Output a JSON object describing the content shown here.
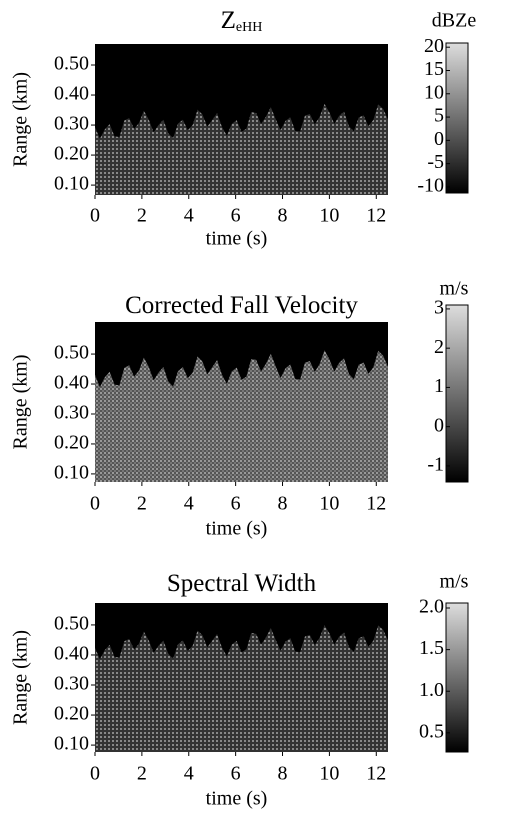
{
  "chart_data": [
    {
      "type": "heatmap",
      "title": "Z",
      "title_sub": "eHH",
      "xlabel": "time (s)",
      "ylabel": "Range (km)",
      "xlim": [
        0,
        12.5
      ],
      "xticks": [
        0,
        2,
        4,
        6,
        8,
        10,
        12
      ],
      "ylim": [
        0.067,
        0.57
      ],
      "yticks": [
        {
          "value": 0.1,
          "label": "0.10"
        },
        {
          "value": 0.2,
          "label": "0.20"
        },
        {
          "value": 0.3,
          "label": "0.30"
        },
        {
          "value": 0.4,
          "label": "0.40"
        },
        {
          "value": 0.5,
          "label": "0.50"
        }
      ],
      "colorbar": {
        "label": "dBZe",
        "lim": [
          -11.3,
          20.9
        ],
        "ticks": [
          -10,
          -5,
          0,
          5,
          10,
          15,
          20
        ]
      }
    },
    {
      "type": "heatmap",
      "title": "Corrected Fall Velocity",
      "xlabel": "time (s)",
      "ylabel": "Range (km)",
      "xlim": [
        0,
        12.5
      ],
      "xticks": [
        0,
        2,
        4,
        6,
        8,
        10,
        12
      ],
      "ylim": [
        0.073,
        0.607
      ],
      "yticks": [
        {
          "value": 0.1,
          "label": "0.10"
        },
        {
          "value": 0.2,
          "label": "0.20"
        },
        {
          "value": 0.3,
          "label": "0.30"
        },
        {
          "value": 0.4,
          "label": "0.40"
        },
        {
          "value": 0.5,
          "label": "0.50"
        }
      ],
      "colorbar": {
        "label": "m/s",
        "lim": [
          -1.41,
          3.1
        ],
        "ticks": [
          -1,
          0,
          1,
          2,
          3
        ]
      }
    },
    {
      "type": "heatmap",
      "title": "Spectral Width",
      "xlabel": "time (s)",
      "ylabel": "Range (km)",
      "xlim": [
        0,
        12.5
      ],
      "xticks": [
        0,
        2,
        4,
        6,
        8,
        10,
        12
      ],
      "ylim": [
        0.077,
        0.573
      ],
      "yticks": [
        {
          "value": 0.1,
          "label": "0.10"
        },
        {
          "value": 0.2,
          "label": "0.20"
        },
        {
          "value": 0.3,
          "label": "0.30"
        },
        {
          "value": 0.4,
          "label": "0.40"
        },
        {
          "value": 0.5,
          "label": "0.50"
        }
      ],
      "colorbar": {
        "label": "m/s",
        "lim": [
          0.27,
          2.06
        ],
        "ticks": [
          0.5,
          {
            "value": 1,
            "label": "1.0"
          },
          1.5,
          {
            "value": 2,
            "label": "2.0"
          }
        ]
      }
    }
  ]
}
